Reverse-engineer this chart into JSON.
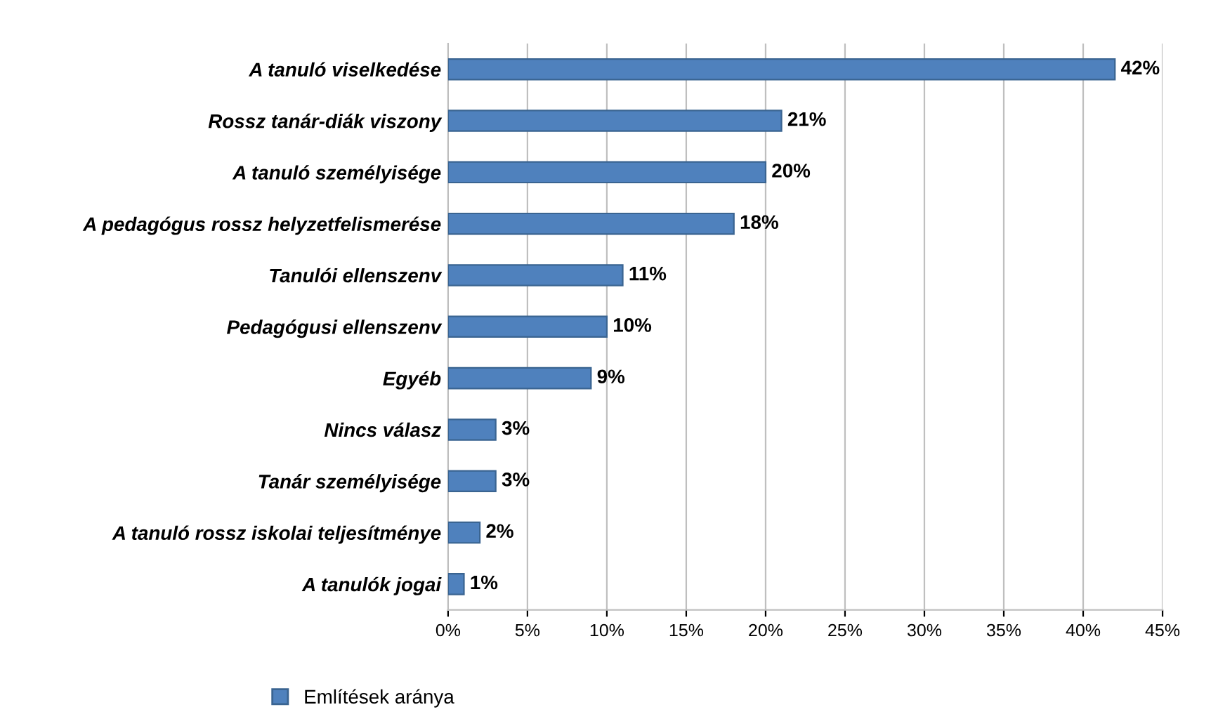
{
  "chart_data": {
    "type": "bar",
    "orientation": "horizontal",
    "categories": [
      "A tanuló viselkedése",
      "Rossz tanár-diák viszony",
      "A tanuló személyisége",
      "A pedagógus rossz helyzetfelismerése",
      "Tanulói ellenszenv",
      "Pedagógusi ellenszenv",
      "Egyéb",
      "Nincs válasz",
      "Tanár személyisége",
      "A tanuló rossz iskolai teljesítménye",
      "A tanulók jogai"
    ],
    "series": [
      {
        "name": "Említések aránya",
        "color": "#4f81bd",
        "values": [
          42,
          21,
          20,
          18,
          11,
          10,
          9,
          3,
          3,
          2,
          1
        ],
        "value_labels": [
          "42%",
          "21%",
          "20%",
          "18%",
          "11%",
          "10%",
          "9%",
          "3%",
          "3%",
          "2%",
          "1%"
        ]
      }
    ],
    "xlim": [
      0,
      45
    ],
    "xticks": [
      {
        "value": 0,
        "label": "0%"
      },
      {
        "value": 5,
        "label": "5%"
      },
      {
        "value": 10,
        "label": "10%"
      },
      {
        "value": 15,
        "label": "15%"
      },
      {
        "value": 20,
        "label": "20%"
      },
      {
        "value": 25,
        "label": "25%"
      },
      {
        "value": 30,
        "label": "30%"
      },
      {
        "value": 35,
        "label": "35%"
      },
      {
        "value": 40,
        "label": "40%"
      },
      {
        "value": 45,
        "label": "45%"
      }
    ],
    "grid": "x",
    "legend": "bottom"
  }
}
